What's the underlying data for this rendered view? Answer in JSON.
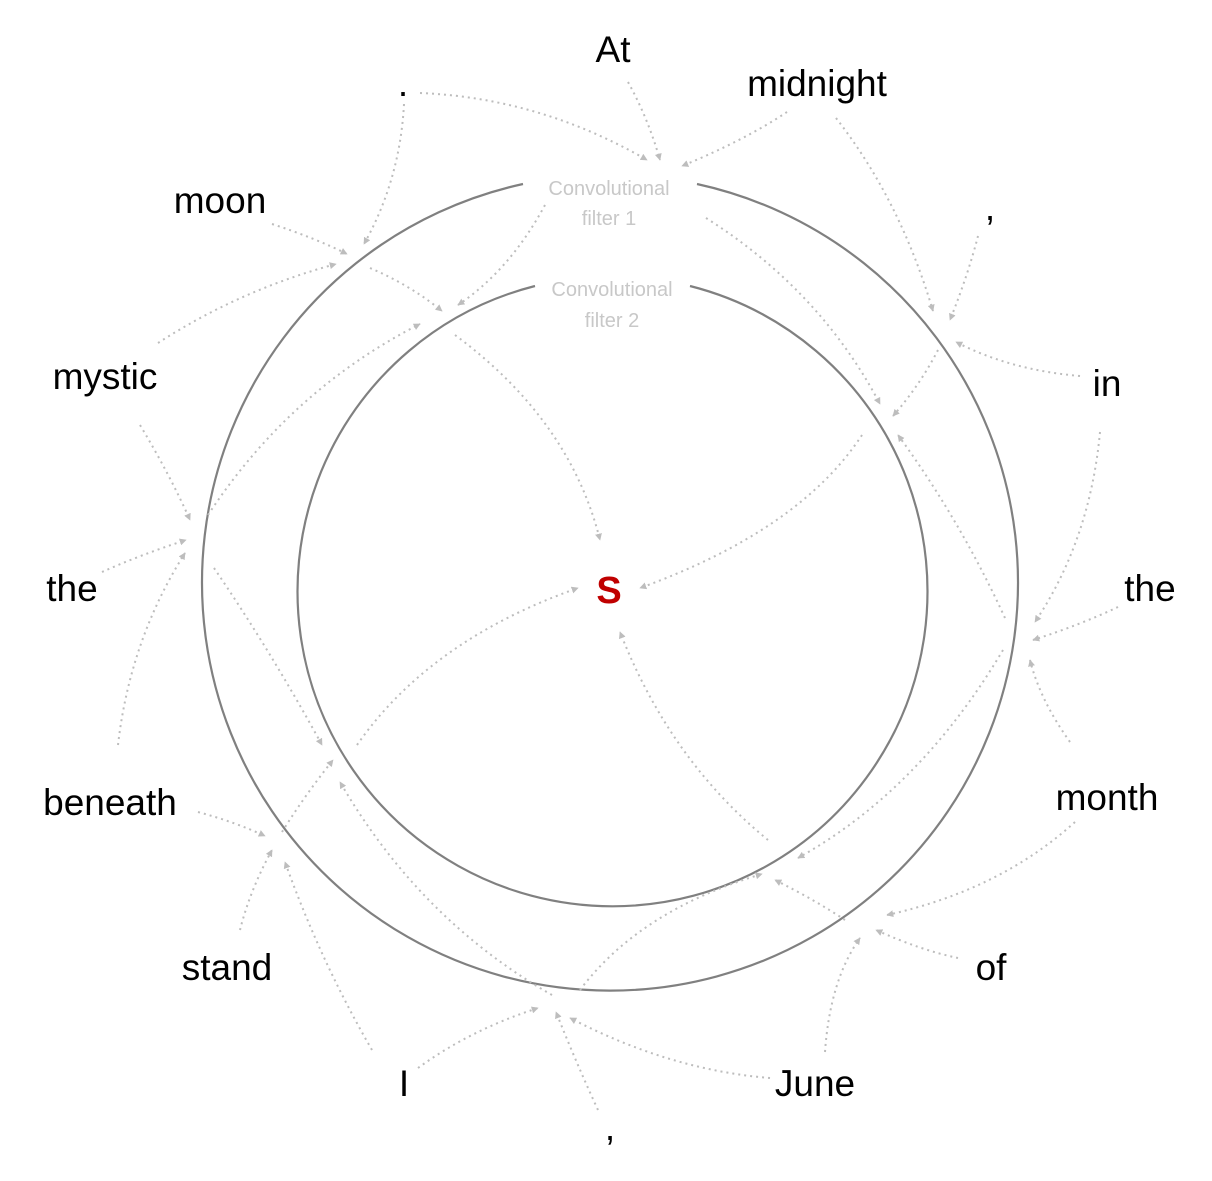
{
  "diagram": {
    "words": [
      "At",
      "midnight",
      ",",
      "in",
      "the",
      "month",
      "of",
      "June",
      ",",
      "I",
      "stand",
      "beneath",
      "the",
      "mystic",
      "moon",
      "."
    ],
    "filter1_label": [
      "Convolutional",
      "filter 1"
    ],
    "filter2_label": [
      "Convolutional",
      "filter 2"
    ],
    "center_label": "S",
    "colors": {
      "center": "#c00000",
      "ring": "#808080",
      "arrow": "#bdbdbd",
      "filter_label": "#c8c8c8",
      "word": "#000000"
    }
  }
}
